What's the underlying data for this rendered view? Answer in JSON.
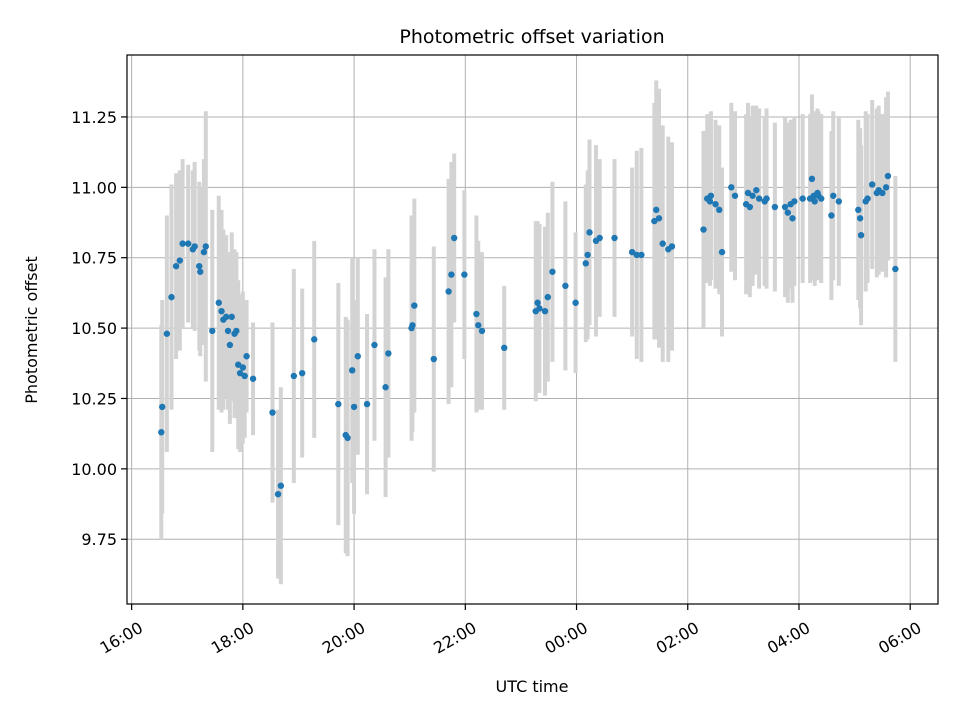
{
  "chart_data": {
    "type": "scatter",
    "title": "Photometric offset variation",
    "xlabel": "UTC time",
    "ylabel": "Photometric offset",
    "x_ticks": [
      "16:00",
      "18:00",
      "20:00",
      "22:00",
      "00:00",
      "02:00",
      "04:00",
      "06:00"
    ],
    "y_ticks": [
      "9.75",
      "10.00",
      "10.25",
      "10.50",
      "10.75",
      "11.00",
      "11.25"
    ],
    "xlim": [
      "15:55",
      "30:30"
    ],
    "ylim": [
      9.52,
      11.47
    ],
    "grid": true,
    "marker_color": "#1f77b4",
    "errorbar_color": "#d3d3d3",
    "series": [
      {
        "time": [
          "16:32",
          "16:33",
          "16:38",
          "16:43",
          "16:48",
          "16:52",
          "16:55",
          "17:01",
          "17:06",
          "17:08",
          "17:13",
          "17:14",
          "17:18",
          "17:20",
          "17:27",
          "17:34",
          "17:37",
          "17:39",
          "17:42",
          "17:44",
          "17:46",
          "17:48",
          "17:51",
          "17:53",
          "17:55",
          "17:57",
          "18:00",
          "18:02",
          "18:04",
          "18:11",
          "18:32",
          "18:38",
          "18:41",
          "18:55",
          "19:04",
          "19:17",
          "19:43",
          "19:51",
          "19:53",
          "19:58",
          "20:00",
          "20:04",
          "20:14",
          "20:22",
          "20:34",
          "20:37",
          "21:02",
          "21:03",
          "21:05",
          "21:26",
          "21:42",
          "21:45",
          "21:48",
          "21:59",
          "22:12",
          "22:14",
          "22:18",
          "22:42",
          "23:16",
          "23:18",
          "23:20",
          "23:26",
          "23:29",
          "23:34",
          "23:48",
          "23:59",
          "24:10",
          "24:12",
          "24:14",
          "24:21",
          "24:25",
          "24:41",
          "25:00",
          "25:05",
          "25:10",
          "25:24",
          "25:26",
          "25:29",
          "25:33",
          "25:39",
          "25:43",
          "26:17",
          "26:21",
          "26:24",
          "26:25",
          "26:30",
          "26:34",
          "26:37",
          "26:47",
          "26:51",
          "27:03",
          "27:05",
          "27:07",
          "27:10",
          "27:14",
          "27:17",
          "27:23",
          "27:25",
          "27:34",
          "27:45",
          "27:48",
          "27:51",
          "27:53",
          "27:55",
          "28:04",
          "28:12",
          "28:14",
          "28:16",
          "28:17",
          "28:20",
          "28:21",
          "28:24",
          "28:35",
          "28:37",
          "28:43",
          "29:04",
          "29:06",
          "29:07",
          "29:12",
          "29:14",
          "29:19",
          "29:24",
          "29:26",
          "29:30",
          "29:34",
          "29:36",
          "29:44"
        ],
        "y": [
          10.13,
          10.22,
          10.48,
          10.61,
          10.72,
          10.74,
          10.8,
          10.8,
          10.78,
          10.79,
          10.72,
          10.7,
          10.77,
          10.79,
          10.49,
          10.59,
          10.56,
          10.53,
          10.54,
          10.49,
          10.44,
          10.54,
          10.48,
          10.49,
          10.37,
          10.34,
          10.36,
          10.33,
          10.4,
          10.32,
          10.2,
          9.91,
          9.94,
          10.33,
          10.34,
          10.46,
          10.23,
          10.12,
          10.11,
          10.35,
          10.22,
          10.4,
          10.23,
          10.44,
          10.29,
          10.41,
          10.5,
          10.51,
          10.58,
          10.39,
          10.63,
          10.69,
          10.82,
          10.69,
          10.55,
          10.51,
          10.49,
          10.43,
          10.56,
          10.59,
          10.57,
          10.56,
          10.61,
          10.7,
          10.65,
          10.59,
          10.73,
          10.76,
          10.84,
          10.81,
          10.82,
          10.82,
          10.77,
          10.76,
          10.76,
          10.88,
          10.92,
          10.89,
          10.8,
          10.78,
          10.79,
          10.85,
          10.96,
          10.95,
          10.97,
          10.94,
          10.92,
          10.77,
          11.0,
          10.97,
          10.94,
          10.98,
          10.93,
          10.97,
          10.99,
          10.96,
          10.95,
          10.96,
          10.93,
          10.93,
          10.91,
          10.94,
          10.89,
          10.95,
          10.96,
          10.96,
          11.03,
          10.97,
          10.95,
          10.98,
          10.97,
          10.96,
          10.9,
          10.97,
          10.95,
          10.92,
          10.89,
          10.83,
          10.95,
          10.96,
          11.01,
          10.98,
          10.99,
          10.98,
          11.0,
          11.04,
          10.71
        ],
        "err": [
          0.38,
          0.38,
          0.42,
          0.4,
          0.33,
          0.32,
          0.3,
          0.28,
          0.28,
          0.3,
          0.3,
          0.3,
          0.33,
          0.48,
          0.43,
          0.38,
          0.36,
          0.32,
          0.29,
          0.28,
          0.28,
          0.3,
          0.3,
          0.28,
          0.3,
          0.28,
          0.27,
          0.22,
          0.2,
          0.2,
          0.32,
          0.3,
          0.35,
          0.38,
          0.3,
          0.35,
          0.43,
          0.42,
          0.42,
          0.4,
          0.38,
          0.35,
          0.32,
          0.34,
          0.39,
          0.37,
          0.4,
          0.38,
          0.38,
          0.4,
          0.4,
          0.4,
          0.3,
          0.3,
          0.35,
          0.3,
          0.28,
          0.22,
          0.32,
          0.29,
          0.3,
          0.3,
          0.3,
          0.32,
          0.3,
          0.25,
          0.28,
          0.3,
          0.33,
          0.34,
          0.28,
          0.28,
          0.3,
          0.37,
          0.38,
          0.42,
          0.46,
          0.46,
          0.42,
          0.4,
          0.37,
          0.35,
          0.3,
          0.3,
          0.3,
          0.3,
          0.3,
          0.3,
          0.3,
          0.3,
          0.32,
          0.32,
          0.32,
          0.32,
          0.3,
          0.32,
          0.3,
          0.32,
          0.3,
          0.32,
          0.32,
          0.3,
          0.3,
          0.3,
          0.3,
          0.3,
          0.3,
          0.3,
          0.3,
          0.3,
          0.3,
          0.3,
          0.3,
          0.3,
          0.3,
          0.32,
          0.32,
          0.32,
          0.32,
          0.3,
          0.3,
          0.3,
          0.3,
          0.28,
          0.32,
          0.3,
          0.33
        ]
      }
    ]
  }
}
